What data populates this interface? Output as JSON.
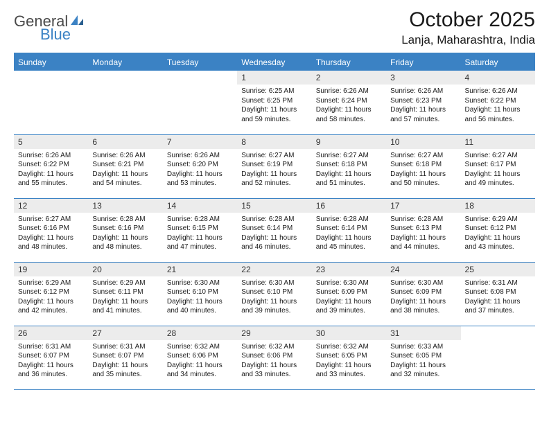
{
  "logo": {
    "text1": "General",
    "text2": "Blue"
  },
  "title": "October 2025",
  "location": "Lanja, Maharashtra, India",
  "colors": {
    "header_bg": "#3b82c4",
    "header_text": "#ffffff",
    "daynum_bg": "#ececec",
    "border": "#3b82c4",
    "page_bg": "#ffffff",
    "text": "#1a1a1a"
  },
  "typography": {
    "title_size_pt": 22,
    "location_size_pt": 13,
    "header_size_pt": 9,
    "daynum_size_pt": 9,
    "body_size_pt": 7.5
  },
  "weekdays": [
    "Sunday",
    "Monday",
    "Tuesday",
    "Wednesday",
    "Thursday",
    "Friday",
    "Saturday"
  ],
  "weeks": [
    [
      null,
      null,
      null,
      {
        "n": "1",
        "sr": "6:25 AM",
        "ss": "6:25 PM",
        "dl": "11 hours and 59 minutes."
      },
      {
        "n": "2",
        "sr": "6:26 AM",
        "ss": "6:24 PM",
        "dl": "11 hours and 58 minutes."
      },
      {
        "n": "3",
        "sr": "6:26 AM",
        "ss": "6:23 PM",
        "dl": "11 hours and 57 minutes."
      },
      {
        "n": "4",
        "sr": "6:26 AM",
        "ss": "6:22 PM",
        "dl": "11 hours and 56 minutes."
      }
    ],
    [
      {
        "n": "5",
        "sr": "6:26 AM",
        "ss": "6:22 PM",
        "dl": "11 hours and 55 minutes."
      },
      {
        "n": "6",
        "sr": "6:26 AM",
        "ss": "6:21 PM",
        "dl": "11 hours and 54 minutes."
      },
      {
        "n": "7",
        "sr": "6:26 AM",
        "ss": "6:20 PM",
        "dl": "11 hours and 53 minutes."
      },
      {
        "n": "8",
        "sr": "6:27 AM",
        "ss": "6:19 PM",
        "dl": "11 hours and 52 minutes."
      },
      {
        "n": "9",
        "sr": "6:27 AM",
        "ss": "6:18 PM",
        "dl": "11 hours and 51 minutes."
      },
      {
        "n": "10",
        "sr": "6:27 AM",
        "ss": "6:18 PM",
        "dl": "11 hours and 50 minutes."
      },
      {
        "n": "11",
        "sr": "6:27 AM",
        "ss": "6:17 PM",
        "dl": "11 hours and 49 minutes."
      }
    ],
    [
      {
        "n": "12",
        "sr": "6:27 AM",
        "ss": "6:16 PM",
        "dl": "11 hours and 48 minutes."
      },
      {
        "n": "13",
        "sr": "6:28 AM",
        "ss": "6:16 PM",
        "dl": "11 hours and 48 minutes."
      },
      {
        "n": "14",
        "sr": "6:28 AM",
        "ss": "6:15 PM",
        "dl": "11 hours and 47 minutes."
      },
      {
        "n": "15",
        "sr": "6:28 AM",
        "ss": "6:14 PM",
        "dl": "11 hours and 46 minutes."
      },
      {
        "n": "16",
        "sr": "6:28 AM",
        "ss": "6:14 PM",
        "dl": "11 hours and 45 minutes."
      },
      {
        "n": "17",
        "sr": "6:28 AM",
        "ss": "6:13 PM",
        "dl": "11 hours and 44 minutes."
      },
      {
        "n": "18",
        "sr": "6:29 AM",
        "ss": "6:12 PM",
        "dl": "11 hours and 43 minutes."
      }
    ],
    [
      {
        "n": "19",
        "sr": "6:29 AM",
        "ss": "6:12 PM",
        "dl": "11 hours and 42 minutes."
      },
      {
        "n": "20",
        "sr": "6:29 AM",
        "ss": "6:11 PM",
        "dl": "11 hours and 41 minutes."
      },
      {
        "n": "21",
        "sr": "6:30 AM",
        "ss": "6:10 PM",
        "dl": "11 hours and 40 minutes."
      },
      {
        "n": "22",
        "sr": "6:30 AM",
        "ss": "6:10 PM",
        "dl": "11 hours and 39 minutes."
      },
      {
        "n": "23",
        "sr": "6:30 AM",
        "ss": "6:09 PM",
        "dl": "11 hours and 39 minutes."
      },
      {
        "n": "24",
        "sr": "6:30 AM",
        "ss": "6:09 PM",
        "dl": "11 hours and 38 minutes."
      },
      {
        "n": "25",
        "sr": "6:31 AM",
        "ss": "6:08 PM",
        "dl": "11 hours and 37 minutes."
      }
    ],
    [
      {
        "n": "26",
        "sr": "6:31 AM",
        "ss": "6:07 PM",
        "dl": "11 hours and 36 minutes."
      },
      {
        "n": "27",
        "sr": "6:31 AM",
        "ss": "6:07 PM",
        "dl": "11 hours and 35 minutes."
      },
      {
        "n": "28",
        "sr": "6:32 AM",
        "ss": "6:06 PM",
        "dl": "11 hours and 34 minutes."
      },
      {
        "n": "29",
        "sr": "6:32 AM",
        "ss": "6:06 PM",
        "dl": "11 hours and 33 minutes."
      },
      {
        "n": "30",
        "sr": "6:32 AM",
        "ss": "6:05 PM",
        "dl": "11 hours and 33 minutes."
      },
      {
        "n": "31",
        "sr": "6:33 AM",
        "ss": "6:05 PM",
        "dl": "11 hours and 32 minutes."
      },
      null
    ]
  ],
  "labels": {
    "sunrise": "Sunrise:",
    "sunset": "Sunset:",
    "daylight": "Daylight:"
  }
}
